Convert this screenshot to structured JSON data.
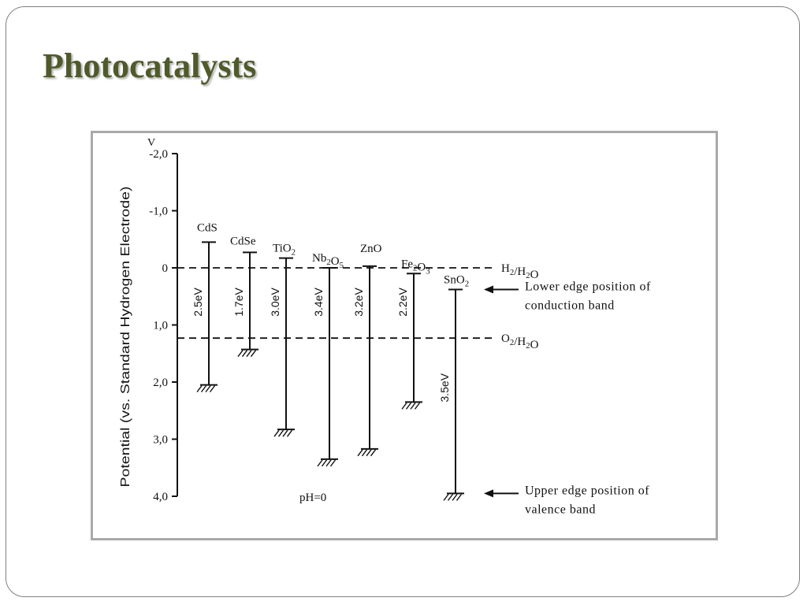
{
  "slide": {
    "title": "Photocatalysts"
  },
  "diagram": {
    "y_unit": "V",
    "y_axis_label": "Potential (vs. Standard Hydrogen Electrode)",
    "y_ticks": [
      {
        "value": -2,
        "label": "-2,0"
      },
      {
        "value": -1,
        "label": "-1,0"
      },
      {
        "value": 0,
        "label": "0"
      },
      {
        "value": 1,
        "label": "1,0"
      },
      {
        "value": 2,
        "label": "2,0"
      },
      {
        "value": 3,
        "label": "3,0"
      },
      {
        "value": 4,
        "label": "4,0"
      }
    ],
    "y_range": [
      -2,
      4
    ],
    "reference_levels": [
      {
        "name": "H2/H2O",
        "base": "H",
        "sub1": "2",
        "mid": "/H",
        "sub2": "2",
        "tail": "O",
        "value": 0
      },
      {
        "name": "O2/H2O",
        "base": "O",
        "sub1": "2",
        "mid": "/H",
        "sub2": "2",
        "tail": "O",
        "value": 1.23
      }
    ],
    "materials": [
      {
        "name": "CdS",
        "parts": [
          [
            "CdS",
            ""
          ]
        ],
        "cb": -0.45,
        "vb": 2.05,
        "gap": "2.5eV"
      },
      {
        "name": "CdSe",
        "parts": [
          [
            "CdSe",
            ""
          ]
        ],
        "cb": -0.27,
        "vb": 1.43,
        "gap": "1.7eV"
      },
      {
        "name": "TiO2",
        "parts": [
          [
            "TiO",
            "2"
          ]
        ],
        "cb": -0.17,
        "vb": 2.83,
        "gap": "3.0eV"
      },
      {
        "name": "Nb2O5",
        "parts": [
          [
            "Nb",
            "2"
          ],
          [
            "O",
            "5"
          ]
        ],
        "cb": 0.0,
        "vb": 3.35,
        "gap": "3.4eV"
      },
      {
        "name": "ZnO",
        "parts": [
          [
            "ZnO",
            ""
          ]
        ],
        "cb": -0.03,
        "vb": 3.17,
        "gap": "3.2eV"
      },
      {
        "name": "Fe2O3",
        "parts": [
          [
            "Fe",
            "2"
          ],
          [
            "O",
            "3"
          ]
        ],
        "cb": 0.1,
        "vb": 2.35,
        "gap": "2.2eV"
      },
      {
        "name": "SnO2",
        "parts": [
          [
            "SnO",
            "2"
          ]
        ],
        "cb": 0.38,
        "vb": 3.95,
        "gap": "3.5eV"
      }
    ],
    "condition": "pH=0",
    "annotations": {
      "conduction_line1": "Lower edge position of",
      "conduction_line2": "conduction band",
      "valence_line1": "Upper edge position of",
      "valence_line2": "valence band"
    }
  }
}
